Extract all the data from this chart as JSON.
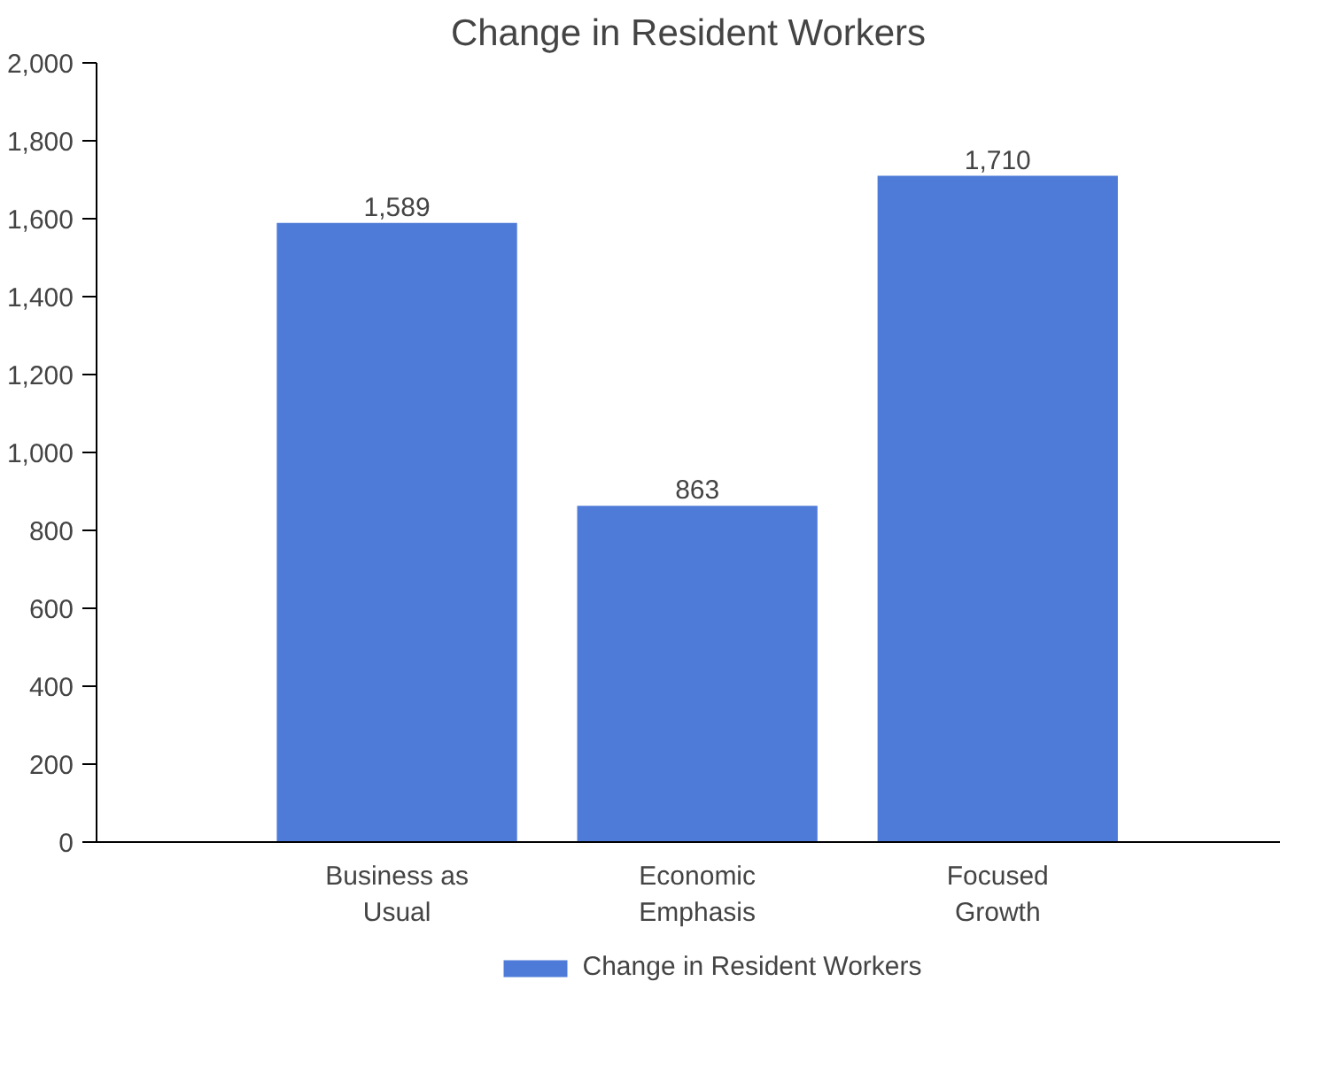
{
  "chart_data": {
    "type": "bar",
    "title": "Change in Resident Workers",
    "categories": [
      "Business as Usual",
      "Economic Emphasis",
      "Focused Growth"
    ],
    "series": [
      {
        "name": "Change in Resident Workers",
        "color": "#4f7bd8",
        "values": [
          1589,
          863,
          1710
        ],
        "value_labels": [
          "1,589",
          "863",
          "1,710"
        ]
      }
    ],
    "ylim": [
      0,
      2000
    ],
    "yticks": [
      0,
      200,
      400,
      600,
      800,
      {
        "value": 1000,
        "label": "1,000"
      },
      {
        "value": 1200,
        "label": "1,200"
      },
      {
        "value": 1400,
        "label": "1,400"
      },
      {
        "value": 1600,
        "label": "1,600"
      },
      {
        "value": 1800,
        "label": "1,800"
      },
      {
        "value": 2000,
        "label": "2,000"
      }
    ],
    "grid": false,
    "legend": "bottom"
  }
}
